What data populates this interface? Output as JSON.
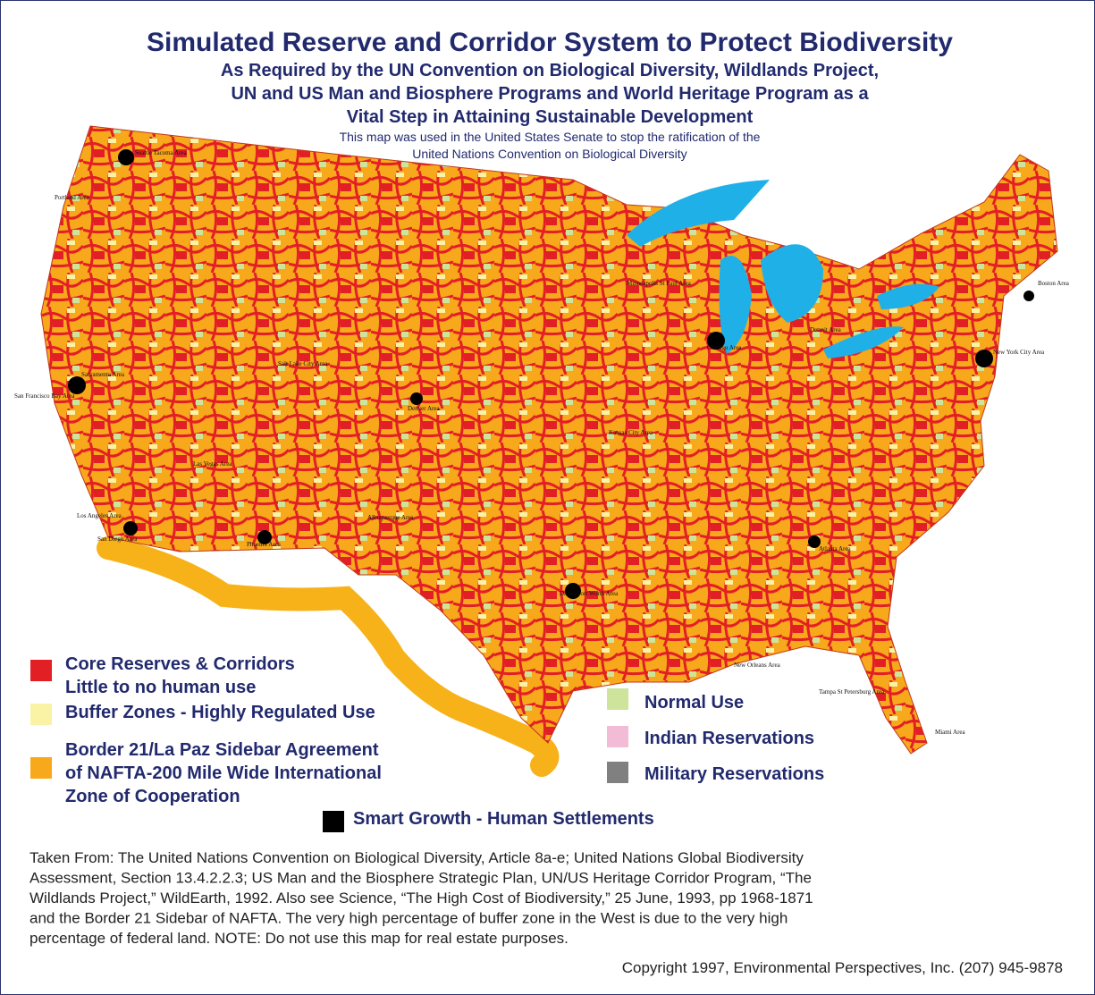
{
  "header": {
    "title": "Simulated Reserve and Corridor System to Protect Biodiversity",
    "subtitle_lines": [
      "As Required by the UN Convention on Biological Diversity, Wildlands Project,",
      "UN and US Man and Biosphere Programs and World Heritage Program as a",
      "Vital Step in Attaining Sustainable Development"
    ],
    "note_lines": [
      "This map was used in the United States Senate to stop the ratification of the",
      "United Nations Convention on Biological Diversity"
    ]
  },
  "map": {
    "labels": [
      "Seattle Tacoma Area",
      "Portland Area",
      "Sacramento Area",
      "San Francisco Bay Area",
      "Los Angeles Area",
      "San Diego Area",
      "Las Vegas Area",
      "Phoenix Area",
      "Salt Lake City Area",
      "Denver Area",
      "Albuquerque Area",
      "Dallas Fort Worth Area",
      "Kansas City Area",
      "Minneapolis St Paul Area",
      "Chicago Area",
      "Detroit Area",
      "New York City Area",
      "Boston Area",
      "Atlanta Area",
      "New Orleans Area",
      "Tampa St Petersburg Area",
      "Miami Area"
    ]
  },
  "legend": {
    "items": [
      {
        "lines": [
          "Core Reserves & Corridors",
          "Little to no human use"
        ],
        "color": "#e31f26"
      },
      {
        "lines": [
          "Buffer Zones - Highly Regulated Use"
        ],
        "color": "#faf3a6"
      },
      {
        "lines": [
          "Border 21/La Paz Sidebar Agreement",
          "of NAFTA-200 Mile Wide International",
          "Zone of Cooperation"
        ],
        "color": "#f7a81b"
      },
      {
        "lines": [
          "Smart Growth - Human Settlements"
        ],
        "color": "#000000"
      },
      {
        "lines": [
          "Normal Use"
        ],
        "color": "#cfe49b"
      },
      {
        "lines": [
          "Indian Reservations"
        ],
        "color": "#f2bcd6"
      },
      {
        "lines": [
          "Military Reservations"
        ],
        "color": "#808080"
      }
    ]
  },
  "footer": {
    "source_lines": [
      "Taken From: The United Nations Convention on Biological Diversity, Article 8a-e; United Nations Global Biodiversity",
      "Assessment, Section 13.4.2.2.3; US Man and the Biosphere Strategic Plan, UN/US Heritage Corridor Program, “The",
      "Wildlands Project,” WildEarth, 1992. Also see Science, “The High Cost of Biodiversity,” 25 June, 1993, pp 1968-1871",
      "and the Border 21 Sidebar of NAFTA. The very high percentage of buffer  zone in the West is due to the very high",
      "percentage of federal land. NOTE: Do not use this map for real estate purposes."
    ],
    "copyright": "Copyright 1997, Environmental Perspectives, Inc.  (207) 945-9878"
  }
}
